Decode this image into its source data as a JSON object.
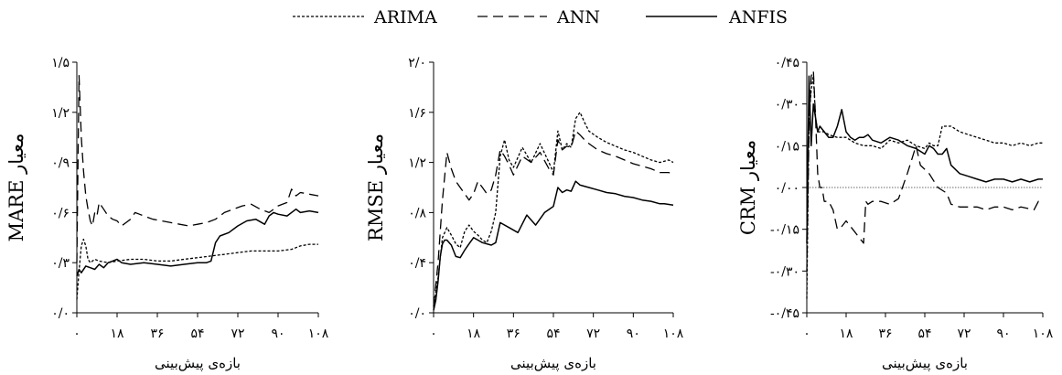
{
  "legend": [
    {
      "name": "ARIMA",
      "dash": "3,2"
    },
    {
      "name": "ANN",
      "dash": "11,6"
    },
    {
      "name": "ANFIS",
      "dash": ""
    }
  ],
  "chart_data": [
    {
      "type": "line",
      "ylabel": "MARE معیار",
      "xlabel": "بازه‌ی پیش‌بینی",
      "xlim": [
        0,
        108
      ],
      "ylim": [
        0,
        1.5
      ],
      "x_ticks": [
        0,
        18,
        36,
        54,
        72,
        90,
        108
      ],
      "x_tick_labels": [
        "۰",
        "۱۸",
        "۳۶",
        "۵۴",
        "۷۲",
        "۹۰",
        "۱۰۸"
      ],
      "y_ticks": [
        0,
        0.3,
        0.6,
        0.9,
        1.2,
        1.5
      ],
      "y_tick_labels": [
        "۰/۰",
        "۰/۳",
        "۰/۶",
        "۰/۹",
        "۱/۲",
        "۱/۵"
      ],
      "series": [
        {
          "name": "ARIMA",
          "x": [
            0,
            1,
            2,
            3,
            4,
            5,
            6,
            7,
            8,
            10,
            14,
            18,
            24,
            30,
            36,
            42,
            48,
            54,
            60,
            66,
            72,
            78,
            84,
            90,
            96,
            100,
            104,
            108
          ],
          "y": [
            0.08,
            0.25,
            0.4,
            0.44,
            0.4,
            0.32,
            0.3,
            0.31,
            0.32,
            0.31,
            0.3,
            0.31,
            0.32,
            0.32,
            0.31,
            0.31,
            0.32,
            0.33,
            0.34,
            0.35,
            0.36,
            0.37,
            0.37,
            0.37,
            0.38,
            0.4,
            0.41,
            0.41
          ]
        },
        {
          "name": "ANN",
          "x": [
            0,
            1,
            2,
            3,
            4,
            5,
            6,
            7,
            8,
            9,
            10,
            12,
            14,
            16,
            18,
            20,
            22,
            24,
            26,
            28,
            30,
            34,
            38,
            42,
            46,
            50,
            54,
            58,
            62,
            66,
            70,
            74,
            78,
            82,
            86,
            90,
            94,
            96,
            98,
            100,
            104,
            108
          ],
          "y": [
            0.3,
            1.42,
            1.05,
            0.85,
            0.7,
            0.62,
            0.55,
            0.52,
            0.6,
            0.58,
            0.66,
            0.62,
            0.58,
            0.56,
            0.55,
            0.52,
            0.54,
            0.56,
            0.6,
            0.59,
            0.58,
            0.56,
            0.55,
            0.54,
            0.53,
            0.52,
            0.53,
            0.54,
            0.56,
            0.6,
            0.62,
            0.64,
            0.65,
            0.62,
            0.6,
            0.64,
            0.66,
            0.74,
            0.7,
            0.72,
            0.71,
            0.7
          ]
        },
        {
          "name": "ANFIS",
          "x": [
            0,
            1,
            2,
            4,
            6,
            8,
            10,
            12,
            14,
            16,
            18,
            20,
            24,
            30,
            36,
            42,
            48,
            54,
            58,
            60,
            62,
            64,
            68,
            72,
            76,
            80,
            84,
            86,
            88,
            90,
            94,
            98,
            100,
            104,
            108
          ],
          "y": [
            0.22,
            0.26,
            0.24,
            0.28,
            0.27,
            0.26,
            0.29,
            0.27,
            0.3,
            0.31,
            0.32,
            0.3,
            0.29,
            0.3,
            0.29,
            0.28,
            0.29,
            0.3,
            0.3,
            0.31,
            0.42,
            0.46,
            0.48,
            0.52,
            0.55,
            0.56,
            0.53,
            0.58,
            0.6,
            0.59,
            0.58,
            0.62,
            0.6,
            0.61,
            0.6
          ]
        }
      ]
    },
    {
      "type": "line",
      "ylabel": "RMSE معیار",
      "xlabel": "بازه‌ی پیش‌بینی",
      "xlim": [
        0,
        108
      ],
      "ylim": [
        0,
        2.0
      ],
      "x_ticks": [
        0,
        18,
        36,
        54,
        72,
        90,
        108
      ],
      "x_tick_labels": [
        "۰",
        "۱۸",
        "۳۶",
        "۵۴",
        "۷۲",
        "۹۰",
        "۱۰۸"
      ],
      "y_ticks": [
        0,
        0.4,
        0.8,
        1.2,
        1.6,
        2.0
      ],
      "y_tick_labels": [
        "۰/۰",
        "۰/۴",
        "۰/۸",
        "۱/۲",
        "۱/۶",
        "۲/۰"
      ],
      "series": [
        {
          "name": "ARIMA",
          "x": [
            0,
            2,
            4,
            6,
            8,
            10,
            12,
            14,
            16,
            18,
            20,
            22,
            24,
            26,
            28,
            30,
            32,
            34,
            36,
            40,
            44,
            48,
            52,
            54,
            56,
            58,
            60,
            62,
            64,
            66,
            68,
            70,
            74,
            78,
            82,
            86,
            90,
            94,
            98,
            102,
            106,
            108
          ],
          "y": [
            0.05,
            0.28,
            0.6,
            0.68,
            0.62,
            0.55,
            0.52,
            0.65,
            0.7,
            0.65,
            0.62,
            0.58,
            0.56,
            0.65,
            0.8,
            1.25,
            1.38,
            1.22,
            1.16,
            1.32,
            1.2,
            1.35,
            1.2,
            1.12,
            1.45,
            1.3,
            1.35,
            1.32,
            1.55,
            1.6,
            1.52,
            1.45,
            1.4,
            1.36,
            1.33,
            1.3,
            1.28,
            1.25,
            1.22,
            1.2,
            1.22,
            1.2
          ]
        },
        {
          "name": "ANN",
          "x": [
            0,
            2,
            4,
            6,
            8,
            10,
            12,
            14,
            16,
            18,
            20,
            22,
            24,
            26,
            28,
            30,
            32,
            34,
            36,
            40,
            44,
            48,
            52,
            54,
            56,
            58,
            60,
            62,
            64,
            66,
            68,
            70,
            74,
            78,
            82,
            86,
            90,
            94,
            98,
            102,
            106,
            108
          ],
          "y": [
            0.05,
            0.4,
            0.9,
            1.28,
            1.15,
            1.05,
            1.0,
            0.95,
            0.9,
            0.95,
            1.05,
            1.0,
            0.95,
            0.98,
            1.1,
            1.3,
            1.25,
            1.18,
            1.1,
            1.25,
            1.2,
            1.28,
            1.15,
            1.1,
            1.38,
            1.3,
            1.33,
            1.32,
            1.45,
            1.42,
            1.38,
            1.35,
            1.3,
            1.27,
            1.25,
            1.22,
            1.19,
            1.17,
            1.15,
            1.12,
            1.12,
            1.1
          ]
        },
        {
          "name": "ANFIS",
          "x": [
            0,
            1,
            2,
            3,
            4,
            5,
            6,
            8,
            10,
            12,
            14,
            16,
            18,
            20,
            22,
            24,
            26,
            28,
            30,
            34,
            38,
            42,
            46,
            50,
            54,
            56,
            58,
            60,
            62,
            64,
            66,
            70,
            74,
            78,
            82,
            86,
            90,
            94,
            98,
            102,
            104,
            108
          ],
          "y": [
            0.02,
            0.1,
            0.25,
            0.45,
            0.55,
            0.58,
            0.58,
            0.54,
            0.45,
            0.44,
            0.5,
            0.55,
            0.6,
            0.58,
            0.56,
            0.55,
            0.54,
            0.56,
            0.72,
            0.68,
            0.64,
            0.78,
            0.7,
            0.8,
            0.85,
            1.0,
            0.96,
            0.98,
            0.97,
            1.05,
            1.02,
            1.0,
            0.98,
            0.96,
            0.95,
            0.93,
            0.92,
            0.9,
            0.89,
            0.87,
            0.87,
            0.86
          ]
        }
      ]
    },
    {
      "type": "line",
      "ylabel": "CRM معیار",
      "xlabel": "بازه‌ی پیش‌بینی",
      "xlim": [
        0,
        108
      ],
      "ylim": [
        -0.45,
        0.45
      ],
      "x_ticks": [
        0,
        18,
        36,
        54,
        72,
        90,
        108
      ],
      "x_tick_labels": [
        "۰",
        "۱۸",
        "۳۶",
        "۵۴",
        "۷۲",
        "۹۰",
        "۱۰۸"
      ],
      "y_ticks": [
        -0.45,
        -0.3,
        -0.15,
        0,
        0.15,
        0.3,
        0.45
      ],
      "y_tick_labels": [
        "-۰/۴۵",
        "-۰/۳۰",
        "-۰/۱۵",
        "۰/۰۰",
        "۰/۱۵",
        "۰/۳۰",
        "۰/۴۵"
      ],
      "reference_line": 0,
      "series": [
        {
          "name": "ARIMA",
          "x": [
            0,
            1,
            2,
            3,
            4,
            5,
            6,
            8,
            10,
            14,
            18,
            22,
            26,
            30,
            34,
            38,
            42,
            46,
            50,
            54,
            56,
            58,
            60,
            62,
            66,
            70,
            74,
            78,
            82,
            86,
            90,
            94,
            98,
            102,
            106,
            108
          ],
          "y": [
            -0.4,
            0.25,
            0.35,
            0.4,
            0.25,
            0.2,
            0.2,
            0.2,
            0.19,
            0.18,
            0.18,
            0.16,
            0.15,
            0.15,
            0.14,
            0.17,
            0.16,
            0.17,
            0.15,
            0.14,
            0.16,
            0.15,
            0.15,
            0.22,
            0.22,
            0.2,
            0.19,
            0.18,
            0.17,
            0.16,
            0.16,
            0.15,
            0.16,
            0.15,
            0.16,
            0.16
          ]
        },
        {
          "name": "ANN",
          "x": [
            0,
            1,
            2,
            3,
            4,
            5,
            6,
            7,
            8,
            10,
            12,
            14,
            16,
            18,
            20,
            22,
            24,
            26,
            27,
            28,
            30,
            34,
            38,
            42,
            46,
            48,
            50,
            52,
            56,
            60,
            64,
            66,
            70,
            74,
            78,
            82,
            86,
            90,
            94,
            98,
            104,
            106,
            108
          ],
          "y": [
            -0.3,
            0.2,
            0.4,
            0.42,
            0.25,
            0.05,
            0.0,
            0.0,
            -0.05,
            -0.05,
            -0.08,
            -0.15,
            -0.14,
            -0.12,
            -0.14,
            -0.16,
            -0.18,
            -0.2,
            -0.05,
            -0.06,
            -0.05,
            -0.05,
            -0.06,
            -0.04,
            0.05,
            0.1,
            0.15,
            0.08,
            0.05,
            0.0,
            -0.02,
            -0.06,
            -0.07,
            -0.07,
            -0.07,
            -0.08,
            -0.07,
            -0.07,
            -0.08,
            -0.07,
            -0.08,
            -0.05,
            -0.06
          ]
        },
        {
          "name": "ANFIS",
          "x": [
            0,
            1,
            2,
            3,
            4,
            5,
            6,
            8,
            10,
            12,
            14,
            16,
            18,
            20,
            22,
            24,
            26,
            28,
            30,
            34,
            38,
            42,
            46,
            50,
            54,
            56,
            58,
            60,
            62,
            64,
            66,
            70,
            74,
            78,
            82,
            86,
            90,
            94,
            98,
            102,
            106,
            108
          ],
          "y": [
            -0.2,
            0.4,
            0.15,
            0.3,
            0.25,
            0.2,
            0.22,
            0.2,
            0.18,
            0.18,
            0.22,
            0.28,
            0.2,
            0.18,
            0.17,
            0.18,
            0.18,
            0.19,
            0.17,
            0.16,
            0.18,
            0.17,
            0.15,
            0.14,
            0.12,
            0.15,
            0.14,
            0.12,
            0.12,
            0.14,
            0.08,
            0.05,
            0.04,
            0.03,
            0.02,
            0.03,
            0.03,
            0.02,
            0.03,
            0.02,
            0.03,
            0.03
          ]
        }
      ]
    }
  ]
}
